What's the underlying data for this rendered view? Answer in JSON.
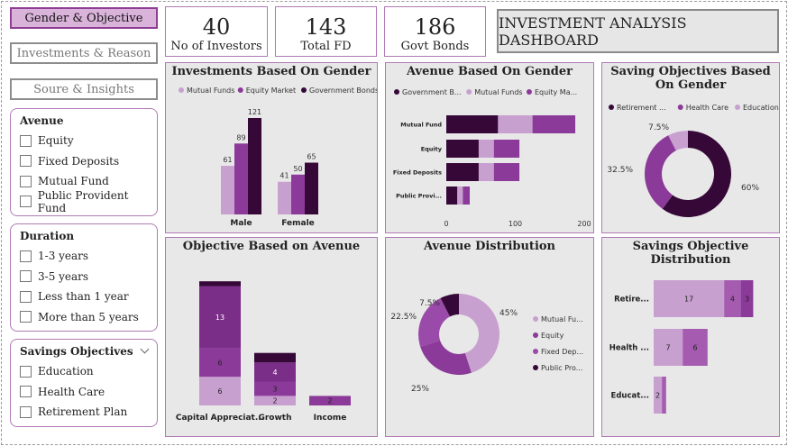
{
  "colors": {
    "light": "#c8a0cf",
    "mid": "#8b3a99",
    "dark": "#350838"
  },
  "tabs": [
    {
      "label": "Gender & Objective",
      "active": true
    },
    {
      "label": "Investments & Reason",
      "active": false
    },
    {
      "label": "Soure & Insights",
      "active": false
    }
  ],
  "slicers": {
    "avenue": {
      "title": "Avenue",
      "items": [
        "Equity",
        "Fixed Deposits",
        "Mutual Fund",
        "Public Provident Fund"
      ]
    },
    "duration": {
      "title": "Duration",
      "items": [
        "1-3 years",
        "3-5 years",
        "Less than 1 year",
        "More than 5 years"
      ]
    },
    "savings": {
      "title": "Savings Objectives",
      "items": [
        "Education",
        "Health Care",
        "Retirement Plan"
      ]
    }
  },
  "kpis": [
    {
      "value": "40",
      "label": "No of Investors"
    },
    {
      "value": "143",
      "label": "Total FD"
    },
    {
      "value": "186",
      "label": "Govt Bonds"
    }
  ],
  "dashboard_title": "INVESTMENT ANALYSIS DASHBOARD",
  "panels": {
    "inv_gender": "Investments Based On Gender",
    "avenue_gender": "Avenue Based On Gender",
    "saving_gender": "Saving Objectives Based On Gender",
    "obj_avenue": "Objective Based on Avenue",
    "avenue_dist": "Avenue Distribution",
    "savings_dist": "Savings Objective Distribution"
  },
  "chart_data": [
    {
      "type": "bar",
      "title": "Investments Based On Gender",
      "categories": [
        "Male",
        "Female"
      ],
      "series": [
        {
          "name": "Mutual Funds",
          "values": [
            61,
            41
          ]
        },
        {
          "name": "Equity Market",
          "values": [
            89,
            50
          ]
        },
        {
          "name": "Government Bonds",
          "values": [
            121,
            65
          ]
        }
      ]
    },
    {
      "type": "bar",
      "orientation": "horizontal",
      "stacked": true,
      "title": "Avenue Based On Gender",
      "legend": [
        "Government B...",
        "Mutual Funds",
        "Equity Ma..."
      ],
      "categories": [
        "Mutual Fund",
        "Equity",
        "Fixed Deposits",
        "Public Provi..."
      ],
      "series": [
        {
          "values": [
            75,
            47,
            47,
            16
          ]
        },
        {
          "values": [
            50,
            22,
            22,
            8
          ]
        },
        {
          "values": [
            62,
            37,
            37,
            10
          ]
        }
      ],
      "xticks": [
        "0",
        "100",
        "200"
      ],
      "xlim": [
        0,
        200
      ]
    },
    {
      "type": "pie",
      "donut": true,
      "title": "Saving Objectives Based On Gender",
      "legend": [
        "Retirement ...",
        "Health Care",
        "Education"
      ],
      "values": [
        60,
        32.5,
        7.5
      ],
      "labels": [
        "60%",
        "32.5%",
        "7.5%"
      ]
    },
    {
      "type": "bar",
      "stacked": true,
      "title": "Objective Based on Avenue",
      "categories": [
        "Capital Appreciat...",
        "Growth",
        "Income"
      ],
      "series": [
        {
          "values": [
            6,
            2,
            0
          ]
        },
        {
          "values": [
            6,
            3,
            2
          ]
        },
        {
          "values": [
            13,
            4,
            0
          ]
        },
        {
          "values": [
            1,
            2,
            0
          ]
        }
      ],
      "labels": [
        [
          "6",
          "6",
          "13",
          ""
        ],
        [
          "2",
          "3",
          "4",
          ""
        ],
        [
          "",
          "2",
          "",
          ""
        ]
      ]
    },
    {
      "type": "pie",
      "donut": true,
      "title": "Avenue Distribution",
      "legend": [
        "Mutual Fu...",
        "Equity",
        "Fixed Dep...",
        "Public Pro..."
      ],
      "values": [
        45,
        25,
        22.5,
        7.5
      ],
      "labels": [
        "45%",
        "25%",
        "22.5%",
        "7.5%"
      ]
    },
    {
      "type": "bar",
      "orientation": "horizontal",
      "stacked": true,
      "title": "Savings Objective Distribution",
      "categories": [
        "Retire...",
        "Health ...",
        "Educat..."
      ],
      "series": [
        {
          "values": [
            17,
            7,
            2
          ]
        },
        {
          "values": [
            4,
            6,
            1
          ]
        },
        {
          "values": [
            3,
            0,
            0
          ]
        }
      ],
      "labels": [
        [
          "17",
          "4",
          "3"
        ],
        [
          "7",
          "6",
          ""
        ],
        [
          "2",
          "",
          ""
        ]
      ]
    }
  ]
}
